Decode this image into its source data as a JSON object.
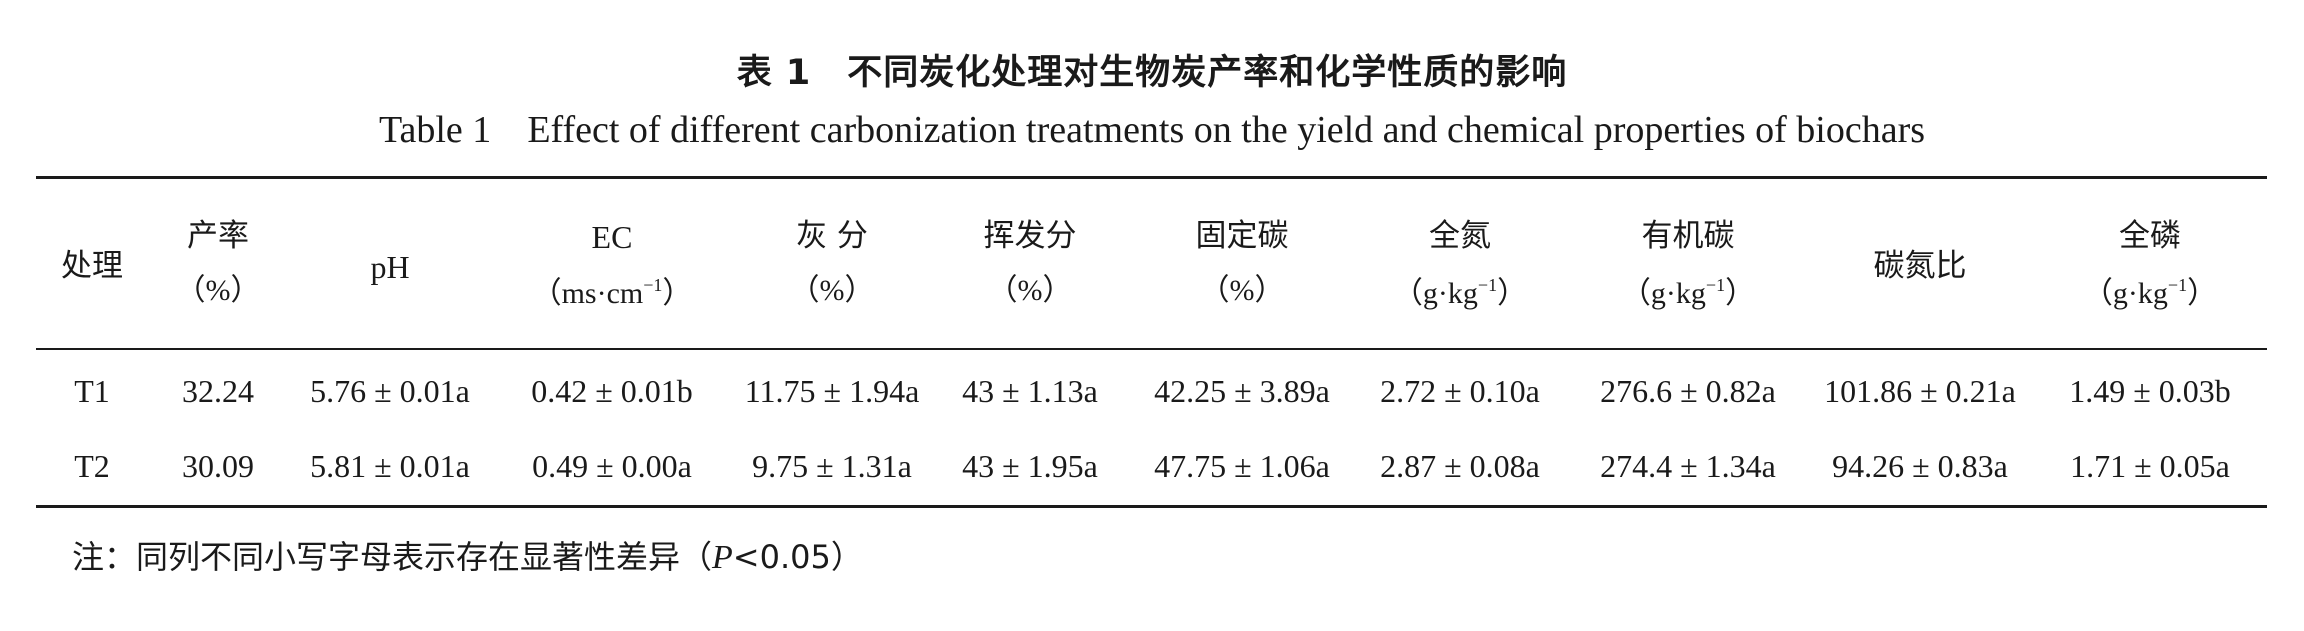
{
  "caption": {
    "cn_label": "表 1",
    "cn_title": "不同炭化处理对生物炭产率和化学性质的影响",
    "en_label": "Table 1",
    "en_title": "Effect of different carbonization treatments on the yield and chemical properties of biochars"
  },
  "table": {
    "columns": [
      {
        "name": "处理",
        "unit": ""
      },
      {
        "name": "产率",
        "unit": "（%）"
      },
      {
        "name": "pH",
        "unit": ""
      },
      {
        "name": "EC",
        "unit_base": "（ms·cm",
        "unit_exp": "−1",
        "unit_close": "）"
      },
      {
        "name": "灰 分",
        "unit": "（%）"
      },
      {
        "name": "挥发分",
        "unit": "（%）"
      },
      {
        "name": "固定碳",
        "unit": "（%）"
      },
      {
        "name": "全氮",
        "unit_base": "（g·kg",
        "unit_exp": "−1",
        "unit_close": "）"
      },
      {
        "name": "有机碳",
        "unit_base": "（g·kg",
        "unit_exp": "−1",
        "unit_close": "）"
      },
      {
        "name": "碳氮比",
        "unit": ""
      },
      {
        "name": "全磷",
        "unit_base": "（g·kg",
        "unit_exp": "−1",
        "unit_close": "）"
      }
    ],
    "rows": [
      [
        "T1",
        "32.24",
        "5.76 ± 0.01a",
        "0.42 ± 0.01b",
        "11.75 ± 1.94a",
        "43 ± 1.13a",
        "42.25 ± 3.89a",
        "2.72 ± 0.10a",
        "276.6 ± 0.82a",
        "101.86 ± 0.21a",
        "1.49 ± 0.03b"
      ],
      [
        "T2",
        "30.09",
        "5.81 ± 0.01a",
        "0.49 ± 0.00a",
        "9.75 ± 1.31a",
        "43 ± 1.95a",
        "47.75 ± 1.06a",
        "2.87 ± 0.08a",
        "274.4 ± 1.34a",
        "94.26 ± 0.83a",
        "1.71 ± 0.05a"
      ]
    ]
  },
  "note": {
    "prefix": "注：同列不同小写字母表示存在显著性差异（",
    "p_symbol": "P",
    "suffix": "<0.05）"
  }
}
